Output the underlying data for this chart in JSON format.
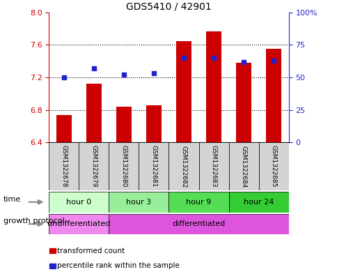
{
  "title": "GDS5410 / 42901",
  "samples": [
    "GSM1322678",
    "GSM1322679",
    "GSM1322680",
    "GSM1322681",
    "GSM1322682",
    "GSM1322683",
    "GSM1322684",
    "GSM1322685"
  ],
  "transformed_counts": [
    6.74,
    7.12,
    6.84,
    6.86,
    7.65,
    7.77,
    7.38,
    7.55
  ],
  "percentile_ranks": [
    50,
    57,
    52,
    53,
    65,
    65,
    62,
    63
  ],
  "ylim_left": [
    6.4,
    8.0
  ],
  "ylim_right": [
    0,
    100
  ],
  "yticks_left": [
    6.4,
    6.8,
    7.2,
    7.6,
    8.0
  ],
  "yticks_right": [
    0,
    25,
    50,
    75,
    100
  ],
  "ytick_labels_right": [
    "0",
    "25",
    "50",
    "75",
    "100%"
  ],
  "bar_color": "#cc0000",
  "dot_color": "#2222cc",
  "bar_bottom": 6.4,
  "time_groups": [
    {
      "label": "hour 0",
      "start": 0,
      "end": 2,
      "color": "#ccffcc"
    },
    {
      "label": "hour 3",
      "start": 2,
      "end": 4,
      "color": "#99ee99"
    },
    {
      "label": "hour 9",
      "start": 4,
      "end": 6,
      "color": "#55dd55"
    },
    {
      "label": "hour 24",
      "start": 6,
      "end": 8,
      "color": "#33cc33"
    }
  ],
  "growth_groups": [
    {
      "label": "undifferentiated",
      "start": 0,
      "end": 2,
      "color": "#ee88ee"
    },
    {
      "label": "differentiated",
      "start": 2,
      "end": 8,
      "color": "#dd55dd"
    }
  ],
  "time_label": "time",
  "growth_label": "growth protocol",
  "legend_items": [
    {
      "label": "transformed count",
      "color": "#cc0000"
    },
    {
      "label": "percentile rank within the sample",
      "color": "#2222cc"
    }
  ],
  "background_color": "#ffffff",
  "left_tick_color": "#cc0000",
  "right_tick_color": "#2222cc",
  "sample_bg": "#d4d4d4",
  "arrow_color": "#888888"
}
